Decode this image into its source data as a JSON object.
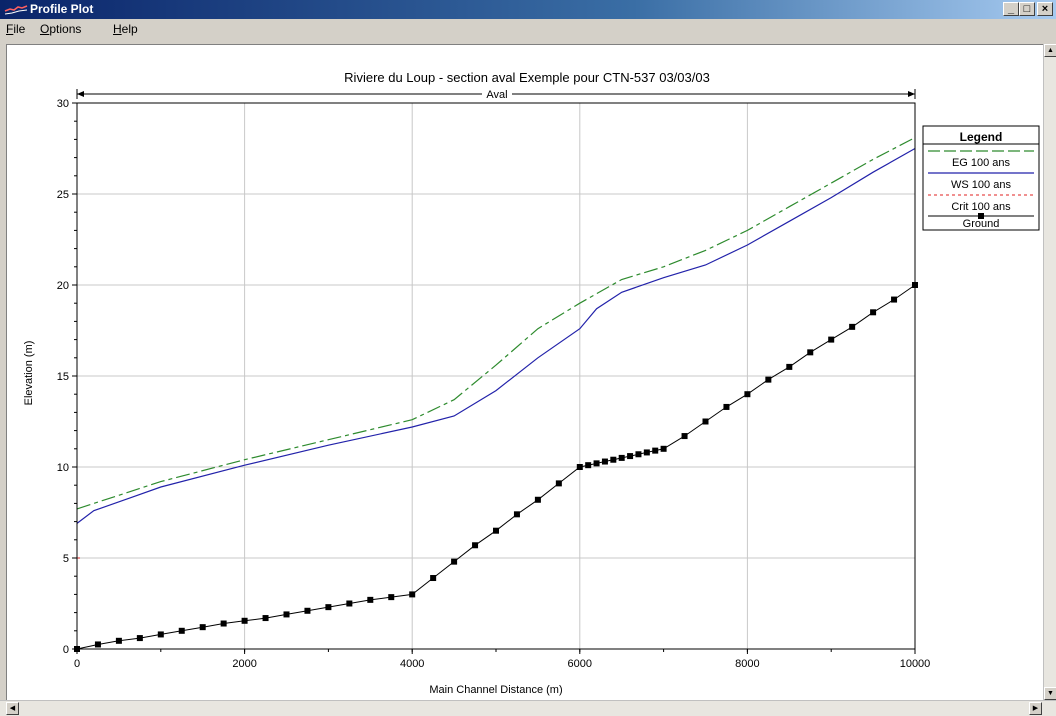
{
  "window": {
    "title": "Profile Plot"
  },
  "menu": [
    {
      "u": "F",
      "rest": "ile"
    },
    {
      "u": "O",
      "rest": "ptions"
    },
    {
      "u": "H",
      "rest": "elp"
    }
  ],
  "win_buttons": [
    "_",
    "□",
    "×"
  ],
  "chart_data": {
    "type": "line",
    "title": "Riviere du Loup - section aval   Exemple pour CTN-537    03/03/03",
    "reach_label": "Aval",
    "xlabel": "Main Channel Distance (m)",
    "ylabel": "Elevation (m)",
    "xlim": [
      0,
      10000
    ],
    "ylim": [
      0,
      30
    ],
    "x_ticks": [
      "0",
      "2000",
      "4000",
      "6000",
      "8000",
      "10000"
    ],
    "y_ticks": [
      "0",
      "5",
      "10",
      "15",
      "20",
      "25",
      "30"
    ],
    "grid": true,
    "legend": {
      "title": "Legend",
      "position": "top-right",
      "entries": [
        "EG  100 ans",
        "WS  100 ans",
        "Crit  100 ans",
        "Ground"
      ]
    },
    "colors": {
      "eg": "#2e8b2e",
      "ws": "#2222aa",
      "crit": "#e02020",
      "ground": "#000000"
    },
    "series": [
      {
        "name": "EG  100 ans",
        "x": [
          0,
          1000,
          2000,
          3000,
          4000,
          4500,
          5000,
          5500,
          6000,
          6500,
          7000,
          7500,
          8000,
          8500,
          9000,
          9500,
          10000
        ],
        "y": [
          7.7,
          9.2,
          10.4,
          11.5,
          12.6,
          13.7,
          15.6,
          17.6,
          19.0,
          20.3,
          21.0,
          21.9,
          23.0,
          24.3,
          25.6,
          26.9,
          28.1
        ]
      },
      {
        "name": "WS  100 ans",
        "x": [
          0,
          200,
          1000,
          2000,
          3000,
          4000,
          4500,
          5000,
          5500,
          6000,
          6200,
          6500,
          7000,
          7500,
          8000,
          8500,
          9000,
          9500,
          10000
        ],
        "y": [
          6.9,
          7.6,
          8.9,
          10.1,
          11.2,
          12.2,
          12.8,
          14.2,
          16.0,
          17.6,
          18.7,
          19.6,
          20.4,
          21.1,
          22.2,
          23.5,
          24.8,
          26.2,
          27.5
        ]
      },
      {
        "name": "Ground",
        "x": [
          0,
          250,
          500,
          750,
          1000,
          1250,
          1500,
          1750,
          2000,
          2250,
          2500,
          2750,
          3000,
          3250,
          3500,
          3750,
          4000,
          4250,
          4500,
          4750,
          5000,
          5250,
          5500,
          5750,
          6000,
          6100,
          6200,
          6300,
          6400,
          6500,
          6600,
          6700,
          6800,
          6900,
          7000,
          7250,
          7500,
          7750,
          8000,
          8250,
          8500,
          8750,
          9000,
          9250,
          9500,
          9750,
          10000
        ],
        "y": [
          0,
          0.25,
          0.45,
          0.6,
          0.8,
          1.0,
          1.2,
          1.4,
          1.55,
          1.7,
          1.9,
          2.1,
          2.3,
          2.5,
          2.7,
          2.85,
          3.0,
          3.9,
          4.8,
          5.7,
          6.5,
          7.4,
          8.2,
          9.1,
          10.0,
          10.1,
          10.2,
          10.3,
          10.4,
          10.5,
          10.6,
          10.7,
          10.8,
          10.9,
          11.0,
          11.7,
          12.5,
          13.3,
          14.0,
          14.8,
          15.5,
          16.3,
          17.0,
          17.7,
          18.5,
          19.2,
          20.0
        ]
      }
    ]
  }
}
